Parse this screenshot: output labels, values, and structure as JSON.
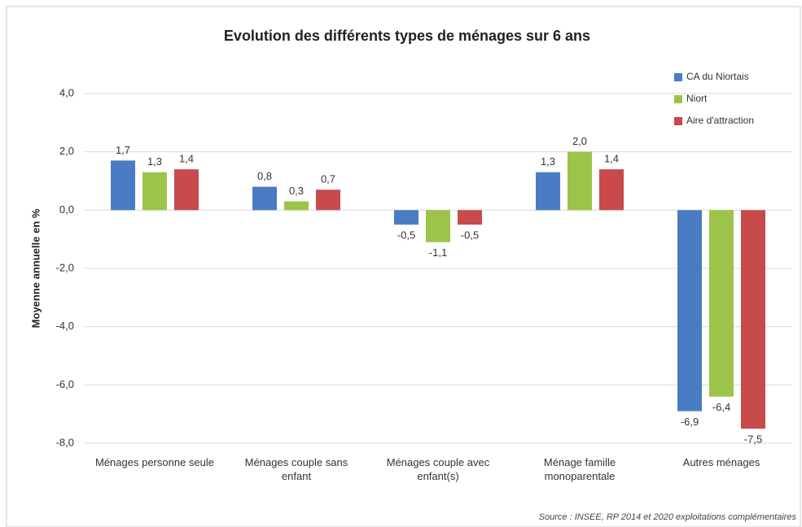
{
  "chart_data": {
    "type": "bar",
    "title": "Evolution des différents types de ménages sur 6 ans",
    "y_label": "Moyenne annuelle en %",
    "source": "Source : INSEE, RP 2014 et 2020 exploitations complémentaires",
    "categories": [
      "Ménages personne seule",
      "Ménages couple sans enfant",
      "Ménages couple avec enfant(s)",
      "Ménage famille monoparentale",
      "Autres ménages"
    ],
    "series": [
      {
        "name": "CA du Niortais",
        "color": "#4a7cc4",
        "values": [
          1.7,
          0.8,
          -0.5,
          1.3,
          -6.9
        ],
        "value_labels": [
          "1,7",
          "0,8",
          "-0,5",
          "1,3",
          "-6,9"
        ]
      },
      {
        "name": "Niort",
        "color": "#9cc44a",
        "values": [
          1.3,
          0.3,
          -1.1,
          2.0,
          -6.4
        ],
        "value_labels": [
          "1,3",
          "0,3",
          "-1,1",
          "2,0",
          "-6,4"
        ]
      },
      {
        "name": "Aire d'attraction",
        "color": "#c84a4a",
        "values": [
          1.4,
          0.7,
          -0.5,
          1.4,
          -7.5
        ],
        "value_labels": [
          "1,4",
          "0,7",
          "-0,5",
          "1,4",
          "-7,5"
        ]
      }
    ],
    "ylim": [
      -8,
      4
    ],
    "yticks": [
      {
        "value": -8,
        "label": "-8,0"
      },
      {
        "value": -6,
        "label": "-6,0"
      },
      {
        "value": -4,
        "label": "-4,0"
      },
      {
        "value": -2,
        "label": "-2,0"
      },
      {
        "value": 0,
        "label": "0,0"
      },
      {
        "value": 2,
        "label": "2,0"
      },
      {
        "value": 4,
        "label": "4,0"
      }
    ],
    "grid": true,
    "legend": "top-right"
  }
}
